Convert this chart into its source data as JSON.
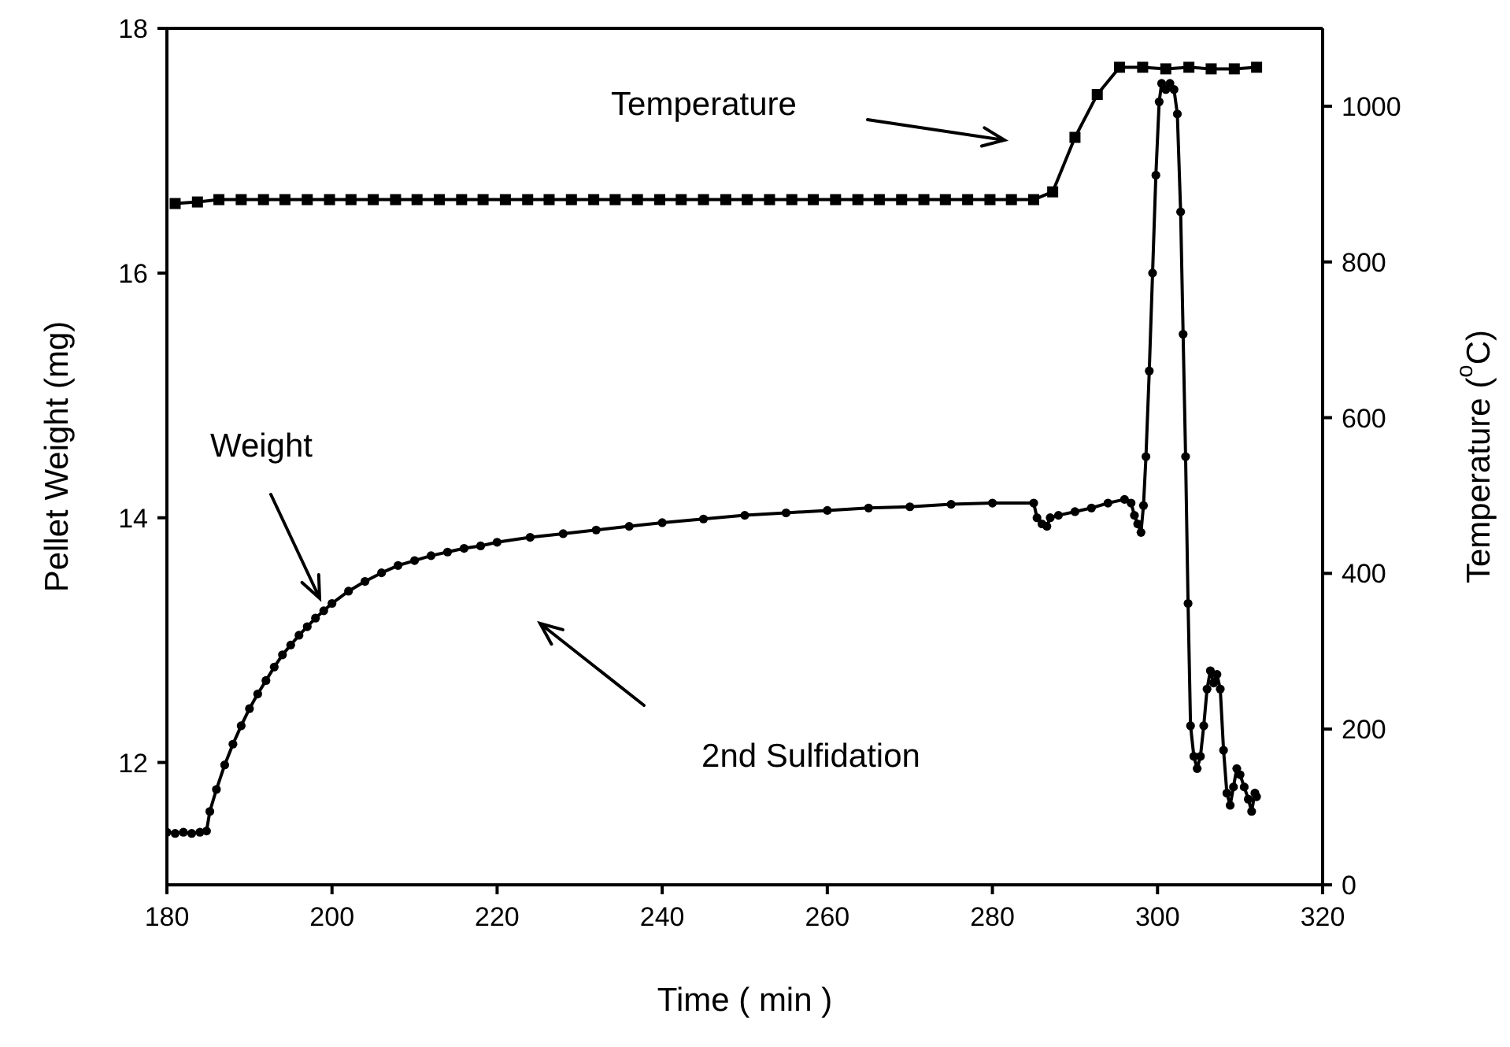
{
  "chart_data": {
    "type": "line",
    "xlabel": "Time ( min )",
    "ylabel": "Pellet Weight (mg)",
    "y2label": "Temperature ($^{o}$C)",
    "xlim": [
      180,
      320
    ],
    "xticks": [
      180,
      200,
      220,
      240,
      260,
      280,
      300,
      320
    ],
    "ylim": [
      11,
      18
    ],
    "yticks": [
      12,
      14,
      16,
      18
    ],
    "y2lim": [
      0,
      1100
    ],
    "y2ticks": [
      0,
      200,
      400,
      600,
      800,
      1000
    ],
    "grid": false,
    "line_style": "solid",
    "annotations": [
      "Temperature",
      "Weight",
      "2nd Sulfidation"
    ],
    "series": [
      {
        "axis": "y2",
        "color": "#000000",
        "marker": "square",
        "x": [
          181,
          183.7,
          186.3,
          189,
          191.7,
          194.3,
          197,
          199.7,
          202.3,
          205,
          207.7,
          210.3,
          213,
          215.7,
          218.3,
          221,
          223.7,
          226.3,
          229,
          231.7,
          234.3,
          237,
          239.7,
          242.3,
          245,
          247.7,
          250.3,
          253,
          255.7,
          258.3,
          261,
          263.7,
          266.3,
          269,
          271.7,
          274.3,
          277,
          279.7,
          282.3,
          285,
          287.3,
          290,
          292.7,
          295.4,
          298.2,
          301,
          303.8,
          306.5,
          309.3,
          312
        ],
        "values": [
          875,
          877,
          880,
          880,
          880,
          880,
          880,
          880,
          880,
          880,
          880,
          880,
          880,
          880,
          880,
          880,
          880,
          880,
          880,
          880,
          880,
          880,
          880,
          880,
          880,
          880,
          880,
          880,
          880,
          880,
          880,
          880,
          880,
          880,
          880,
          880,
          880,
          880,
          880,
          880,
          890,
          960,
          1015,
          1050,
          1050,
          1048,
          1050,
          1048,
          1048,
          1050
        ]
      },
      {
        "axis": "y",
        "color": "#000000",
        "marker": "circle",
        "x": [
          180,
          181,
          182,
          183,
          184,
          184.8,
          185.2,
          186,
          187,
          188,
          189,
          190,
          191,
          192,
          193,
          194,
          195,
          196,
          197,
          198,
          199,
          200,
          202,
          204,
          206,
          208,
          210,
          212,
          214,
          216,
          218,
          220,
          224,
          228,
          232,
          236,
          240,
          245,
          250,
          255,
          260,
          265,
          270,
          275,
          280,
          285,
          285.4,
          286,
          286.6,
          287,
          288,
          290,
          292,
          294,
          296,
          296.8,
          297.2,
          297.6,
          298,
          298.3,
          298.6,
          299,
          299.4,
          299.8,
          300.2,
          300.5,
          301,
          301.5,
          302,
          302.4,
          302.8,
          303.1,
          303.4,
          303.7,
          304,
          304.4,
          304.8,
          305.2,
          305.6,
          306,
          306.4,
          306.8,
          307.2,
          307.6,
          308,
          308.4,
          308.8,
          309.2,
          309.6,
          310,
          310.5,
          311,
          311.4,
          311.8,
          312
        ],
        "values": [
          11.43,
          11.42,
          11.43,
          11.42,
          11.43,
          11.44,
          11.6,
          11.78,
          11.98,
          12.15,
          12.3,
          12.44,
          12.56,
          12.67,
          12.78,
          12.88,
          12.96,
          13.04,
          13.11,
          13.18,
          13.24,
          13.3,
          13.4,
          13.48,
          13.55,
          13.61,
          13.65,
          13.69,
          13.72,
          13.75,
          13.77,
          13.8,
          13.84,
          13.87,
          13.9,
          13.93,
          13.96,
          13.99,
          14.02,
          14.04,
          14.06,
          14.08,
          14.09,
          14.11,
          14.12,
          14.12,
          14.0,
          13.95,
          13.93,
          14.0,
          14.02,
          14.05,
          14.08,
          14.12,
          14.15,
          14.12,
          14.02,
          13.95,
          13.88,
          14.1,
          14.5,
          15.2,
          16.0,
          16.8,
          17.4,
          17.55,
          17.5,
          17.55,
          17.5,
          17.3,
          16.5,
          15.5,
          14.5,
          13.3,
          12.3,
          12.05,
          11.95,
          12.05,
          12.3,
          12.6,
          12.75,
          12.65,
          12.72,
          12.6,
          12.1,
          11.75,
          11.65,
          11.8,
          11.95,
          11.9,
          11.8,
          11.7,
          11.6,
          11.75,
          11.72
        ]
      }
    ]
  }
}
